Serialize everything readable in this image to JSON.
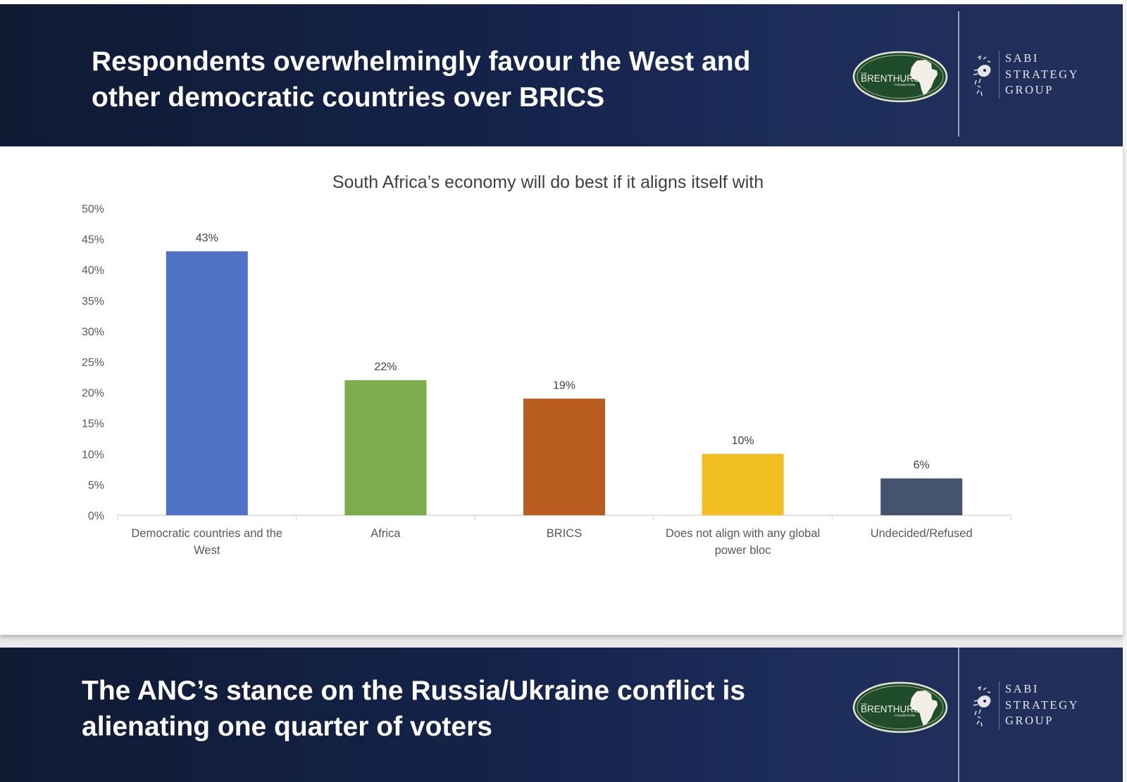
{
  "slides": [
    {
      "title_line1": "Respondents overwhelmingly favour the West and",
      "title_line2": "other democratic countries over BRICS"
    },
    {
      "title_line1": "The ANC’s stance on the Russia/Ukraine conflict is",
      "title_line2": "alienating one quarter of voters"
    }
  ],
  "logos": {
    "brenthurst_small": "THE",
    "brenthurst_name": "BRENTHURST",
    "brenthurst_sub": "FOUNDATION",
    "sabi_line1": "SABI",
    "sabi_line2": "STRATEGY",
    "sabi_line3": "GROUP"
  },
  "colors": {
    "header_bg": "#14234a",
    "logo_green": "#1f4d2c"
  },
  "chart_data": {
    "type": "bar",
    "title": "South Africa’s economy will do best if it aligns itself with",
    "categories": [
      "Democratic countries and the West",
      "Africa",
      "BRICS",
      "Does not align with any global power bloc",
      "Undecided/Refused"
    ],
    "category_lines": [
      [
        "Democratic countries and the",
        "West"
      ],
      [
        "Africa"
      ],
      [
        "BRICS"
      ],
      [
        "Does not align with any global",
        "power bloc"
      ],
      [
        "Undecided/Refused"
      ]
    ],
    "values": [
      43,
      22,
      19,
      10,
      6
    ],
    "data_labels": [
      "43%",
      "22%",
      "19%",
      "10%",
      "6%"
    ],
    "bar_colors": [
      "#5072c6",
      "#7cac4b",
      "#b85c1f",
      "#f2c022",
      "#44546e"
    ],
    "ylim": [
      0,
      50
    ],
    "yticks": [
      "0%",
      "5%",
      "10%",
      "15%",
      "20%",
      "25%",
      "30%",
      "35%",
      "40%",
      "45%",
      "50%"
    ],
    "xlabel": "",
    "ylabel": "",
    "grid": false,
    "legend": "none"
  }
}
